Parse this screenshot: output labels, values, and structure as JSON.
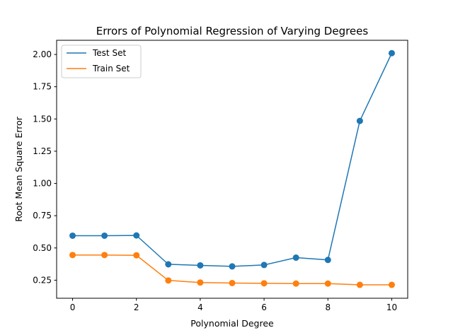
{
  "chart_data": {
    "type": "line",
    "title": "Errors of Polynomial Regression of Varying Degrees",
    "xlabel": "Polynomial Degree",
    "ylabel": "Root Mean Square Error",
    "x": [
      0,
      1,
      2,
      3,
      4,
      5,
      6,
      7,
      8,
      9,
      10
    ],
    "xlim": [
      -0.5,
      10.5
    ],
    "ylim": [
      0.11,
      2.11
    ],
    "xticks": [
      0,
      2,
      4,
      6,
      8,
      10
    ],
    "xtick_labels": [
      "0",
      "2",
      "4",
      "6",
      "8",
      "10"
    ],
    "yticks": [
      0.25,
      0.5,
      0.75,
      1.0,
      1.25,
      1.5,
      1.75,
      2.0
    ],
    "ytick_labels": [
      "0.25",
      "0.50",
      "0.75",
      "1.00",
      "1.25",
      "1.50",
      "1.75",
      "2.00"
    ],
    "grid": false,
    "legend_position": "upper-left",
    "series": [
      {
        "name": "Test Set",
        "color": "#1f77b4",
        "values": [
          0.595,
          0.595,
          0.597,
          0.373,
          0.365,
          0.357,
          0.368,
          0.425,
          0.407,
          1.485,
          2.01
        ]
      },
      {
        "name": "Train Set",
        "color": "#ff7f0e",
        "values": [
          0.445,
          0.445,
          0.443,
          0.248,
          0.232,
          0.228,
          0.226,
          0.224,
          0.224,
          0.214,
          0.214
        ]
      }
    ]
  }
}
